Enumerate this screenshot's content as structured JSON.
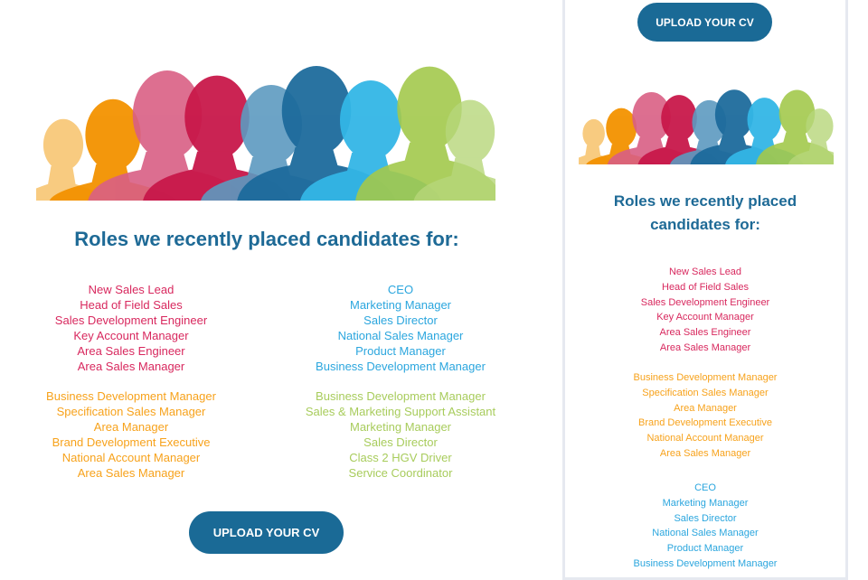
{
  "title": "Roles we recently placed candidates for:",
  "upload_button": "UPLOAD YOUR CV",
  "silhouette_colors": [
    "#f7c26a",
    "#f39200",
    "#d95f84",
    "#c8184a",
    "#5d9ac0",
    "#1d6b9c",
    "#33b6e6",
    "#a3c94c",
    "#b7d77a"
  ],
  "groups": {
    "pink": [
      "New Sales Lead",
      "Head of Field Sales",
      "Sales Development Engineer",
      "Key Account Manager",
      "Area Sales Engineer",
      "Area Sales Manager"
    ],
    "orange": [
      "Business Development Manager",
      "Specification Sales Manager",
      "Area Manager",
      "Brand Development Executive",
      "National Account Manager",
      "Area Sales Manager"
    ],
    "blue": [
      "CEO",
      "Marketing Manager",
      "Sales Director",
      "National Sales Manager",
      "Product Manager",
      "Business Development Manager"
    ],
    "green": [
      "Business Development Manager",
      "Sales & Marketing Support Assistant",
      "Marketing Manager",
      "Sales Director",
      "Class 2 HGV Driver",
      "Service Coordinator"
    ]
  }
}
